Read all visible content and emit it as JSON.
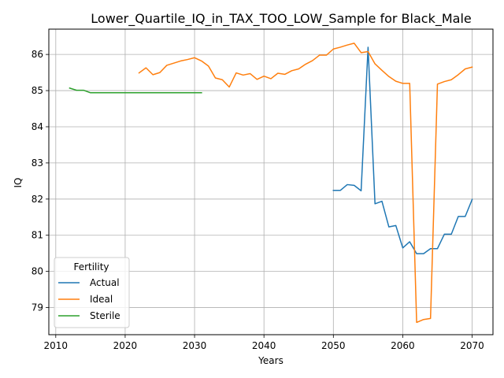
{
  "chart_data": {
    "type": "line",
    "title": "Lower_Quartile_IQ_in_TAX_TOO_LOW_Sample for Black_Male",
    "xlabel": "Years",
    "ylabel": "IQ",
    "xlim": [
      2009,
      2073
    ],
    "ylim": [
      78.25,
      86.7
    ],
    "xticks": [
      2010,
      2020,
      2030,
      2040,
      2050,
      2060,
      2070
    ],
    "yticks": [
      79,
      80,
      81,
      82,
      83,
      84,
      85,
      86
    ],
    "grid": true,
    "legend": {
      "title": "Fertility",
      "placement": "lower-left"
    },
    "series": [
      {
        "name": "Actual",
        "color": "#1f77b4",
        "x": [
          2050,
          2051,
          2052,
          2053,
          2054,
          2055,
          2056,
          2057,
          2058,
          2059,
          2060,
          2061,
          2062,
          2063,
          2064,
          2065,
          2066,
          2067,
          2068,
          2069,
          2070
        ],
        "y": [
          82.24,
          82.24,
          82.4,
          82.38,
          82.23,
          86.2,
          81.87,
          81.94,
          81.23,
          81.27,
          80.65,
          80.82,
          80.49,
          80.49,
          80.63,
          80.63,
          81.03,
          81.03,
          81.52,
          81.52,
          81.99
        ]
      },
      {
        "name": "Ideal",
        "color": "#ff7f0e",
        "x": [
          2022,
          2023,
          2024,
          2025,
          2026,
          2027,
          2028,
          2029,
          2030,
          2031,
          2032,
          2033,
          2034,
          2035,
          2036,
          2037,
          2038,
          2039,
          2040,
          2041,
          2042,
          2043,
          2044,
          2045,
          2046,
          2047,
          2048,
          2049,
          2050,
          2051,
          2052,
          2053,
          2054,
          2055,
          2056,
          2057,
          2058,
          2059,
          2060,
          2061,
          2062,
          2063,
          2064,
          2065,
          2066,
          2067,
          2068,
          2069,
          2070
        ],
        "y": [
          85.49,
          85.63,
          85.44,
          85.5,
          85.7,
          85.76,
          85.82,
          85.86,
          85.91,
          85.82,
          85.68,
          85.35,
          85.3,
          85.1,
          85.49,
          85.43,
          85.47,
          85.31,
          85.4,
          85.33,
          85.48,
          85.45,
          85.55,
          85.6,
          85.73,
          85.83,
          85.98,
          85.98,
          86.15,
          86.2,
          86.26,
          86.31,
          86.05,
          86.08,
          85.74,
          85.56,
          85.39,
          85.26,
          85.2,
          85.2,
          78.59,
          78.67,
          78.7,
          85.18,
          85.25,
          85.3,
          85.44,
          85.6,
          85.65
        ]
      },
      {
        "name": "Sterile",
        "color": "#2ca02c",
        "x": [
          2012,
          2013,
          2014,
          2015,
          2016,
          2017,
          2018,
          2019,
          2020,
          2021,
          2022,
          2023,
          2024,
          2025,
          2026,
          2027,
          2028,
          2029,
          2030,
          2031
        ],
        "y": [
          85.07,
          85.01,
          85.01,
          84.94,
          84.94,
          84.94,
          84.94,
          84.94,
          84.94,
          84.94,
          84.94,
          84.94,
          84.94,
          84.94,
          84.94,
          84.94,
          84.94,
          84.94,
          84.94,
          84.94
        ]
      }
    ]
  }
}
